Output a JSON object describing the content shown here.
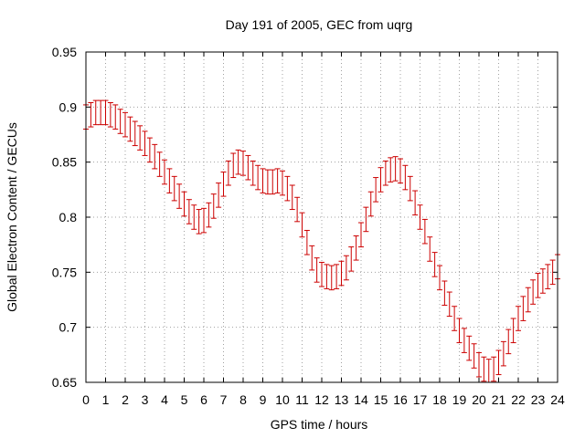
{
  "chart_data": {
    "type": "scatter",
    "title": "Day 191 of 2005, GEC from uqrg",
    "xlabel": "GPS time / hours",
    "ylabel": "Global Electron Content / GECUs",
    "xlim": [
      0,
      24
    ],
    "ylim": [
      0.65,
      0.95
    ],
    "x_ticks": [
      "0",
      "1",
      "2",
      "3",
      "4",
      "5",
      "6",
      "7",
      "8",
      "9",
      "10",
      "11",
      "12",
      "13",
      "14",
      "15",
      "16",
      "17",
      "18",
      "19",
      "20",
      "21",
      "22",
      "23",
      "24"
    ],
    "y_ticks": [
      "0.65",
      "0.7",
      "0.75",
      "0.8",
      "0.85",
      "0.9",
      "0.95"
    ],
    "grid": true,
    "error_bars": true,
    "color": "#cc0000",
    "series": [
      {
        "x": [
          0,
          0.25,
          0.5,
          0.75,
          1,
          1.25,
          1.5,
          1.75,
          2,
          2.25,
          2.5,
          2.75,
          3,
          3.25,
          3.5,
          3.75,
          4,
          4.25,
          4.5,
          4.75,
          5,
          5.25,
          5.5,
          5.75,
          6,
          6.25,
          6.5,
          6.75,
          7,
          7.25,
          7.5,
          7.75,
          8,
          8.25,
          8.5,
          8.75,
          9,
          9.25,
          9.5,
          9.75,
          10,
          10.25,
          10.5,
          10.75,
          11,
          11.25,
          11.5,
          11.75,
          12,
          12.25,
          12.5,
          12.75,
          13,
          13.25,
          13.5,
          13.75,
          14,
          14.25,
          14.5,
          14.75,
          15,
          15.25,
          15.5,
          15.75,
          16,
          16.25,
          16.5,
          16.75,
          17,
          17.25,
          17.5,
          17.75,
          18,
          18.25,
          18.5,
          18.75,
          19,
          19.25,
          19.5,
          19.75,
          20,
          20.25,
          20.5,
          20.75,
          21,
          21.25,
          21.5,
          21.75,
          22,
          22.25,
          22.5,
          22.75,
          23,
          23.25,
          23.5,
          23.75,
          24
        ],
        "y": [
          0.891,
          0.893,
          0.895,
          0.895,
          0.895,
          0.893,
          0.891,
          0.887,
          0.884,
          0.88,
          0.876,
          0.872,
          0.867,
          0.861,
          0.855,
          0.848,
          0.841,
          0.833,
          0.826,
          0.819,
          0.812,
          0.805,
          0.8,
          0.796,
          0.797,
          0.802,
          0.81,
          0.82,
          0.83,
          0.84,
          0.847,
          0.85,
          0.849,
          0.845,
          0.84,
          0.836,
          0.833,
          0.832,
          0.832,
          0.833,
          0.831,
          0.826,
          0.818,
          0.807,
          0.793,
          0.777,
          0.763,
          0.752,
          0.748,
          0.746,
          0.745,
          0.746,
          0.749,
          0.754,
          0.762,
          0.772,
          0.784,
          0.798,
          0.812,
          0.825,
          0.834,
          0.84,
          0.843,
          0.844,
          0.842,
          0.836,
          0.826,
          0.813,
          0.8,
          0.787,
          0.771,
          0.757,
          0.745,
          0.731,
          0.721,
          0.708,
          0.697,
          0.688,
          0.681,
          0.674,
          0.666,
          0.662,
          0.66,
          0.662,
          0.668,
          0.676,
          0.687,
          0.697,
          0.708,
          0.717,
          0.725,
          0.732,
          0.738,
          0.742,
          0.746,
          0.75,
          0.755
        ],
        "error": 0.011
      }
    ]
  }
}
